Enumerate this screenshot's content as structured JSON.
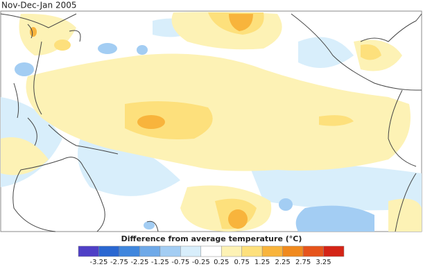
{
  "title": "Nov-Dec-Jan 2005",
  "legend": {
    "title": "Difference from average temperature (°C)",
    "colors": [
      "#4f3fc6",
      "#2a67d1",
      "#3f86dd",
      "#6ea9e8",
      "#a3cdf3",
      "#d8eefb",
      "#ffffff",
      "#fdf2b5",
      "#fde07c",
      "#f8b43c",
      "#f08a1e",
      "#e6541b",
      "#d42416"
    ],
    "ticks": [
      -3.25,
      -2.75,
      -2.25,
      -1.25,
      -0.75,
      -0.25,
      0.25,
      0.75,
      1.25,
      2.25,
      2.75,
      3.25
    ]
  }
}
